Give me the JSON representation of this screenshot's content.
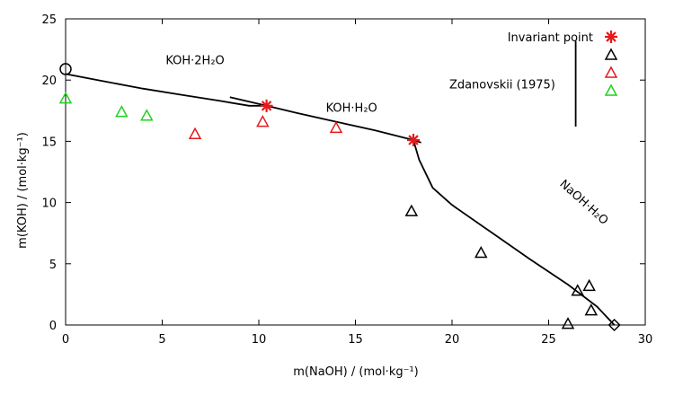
{
  "chart_data": {
    "type": "scatter",
    "xlabel": "m(NaOH) / (mol·kg⁻¹)",
    "ylabel": "m(KOH) / (mol·kg⁻¹)",
    "xlim": [
      0,
      30
    ],
    "ylim": [
      0,
      25
    ],
    "x_ticks": [
      "0",
      "5",
      "10",
      "15",
      "20",
      "25",
      "30"
    ],
    "y_ticks": [
      "0",
      "5",
      "10",
      "15",
      "20",
      "25"
    ],
    "grid": false,
    "legend_position": "top-right",
    "annotations": [
      {
        "text": "KOH·2H₂O",
        "x": 6.7,
        "y": 21.3
      },
      {
        "text": "KOH·H₂O",
        "x": 14.8,
        "y": 17.4
      },
      {
        "text": "Zdanovskii (1975)",
        "x": 22.6,
        "y": 19.3
      },
      {
        "text": "NaOH·H₂O",
        "x": 26.7,
        "y": 9.8
      }
    ],
    "series": [
      {
        "name": "Invariant point",
        "marker": "asterisk",
        "color": "#e41a1c",
        "points": [
          [
            10.4,
            17.9
          ],
          [
            18.0,
            15.1
          ]
        ]
      },
      {
        "name": "",
        "marker": "triangle",
        "color": "#000000",
        "points": [
          [
            17.9,
            9.3
          ],
          [
            21.5,
            5.9
          ],
          [
            26.0,
            0.1
          ],
          [
            26.5,
            2.8
          ],
          [
            27.1,
            3.2
          ],
          [
            27.2,
            1.2
          ]
        ]
      },
      {
        "name": "",
        "marker": "triangle",
        "color": "#e41a1c",
        "points": [
          [
            6.7,
            15.6
          ],
          [
            10.2,
            16.6
          ],
          [
            14.0,
            16.1
          ]
        ]
      },
      {
        "name": "",
        "marker": "triangle",
        "color": "#1fd11f",
        "points": [
          [
            0.0,
            18.5
          ],
          [
            2.9,
            17.4
          ],
          [
            4.2,
            17.1
          ]
        ]
      },
      {
        "name": "",
        "marker": "circle",
        "color": "#000000",
        "points": [
          [
            0.0,
            20.9
          ]
        ]
      },
      {
        "name": "",
        "marker": "diamond",
        "color": "#000000",
        "points": [
          [
            28.4,
            0.0
          ]
        ]
      }
    ],
    "curves": [
      {
        "name": "KOH·2H₂O",
        "points": [
          [
            0.0,
            20.5
          ],
          [
            2.0,
            19.9
          ],
          [
            4.0,
            19.3
          ],
          [
            6.0,
            18.8
          ],
          [
            8.0,
            18.3
          ],
          [
            9.5,
            17.9
          ],
          [
            10.4,
            17.9
          ]
        ]
      },
      {
        "name": "KOH·H₂O",
        "points": [
          [
            8.5,
            18.6
          ],
          [
            10.4,
            17.9
          ],
          [
            12.0,
            17.3
          ],
          [
            14.0,
            16.6
          ],
          [
            16.0,
            15.9
          ],
          [
            18.0,
            15.1
          ],
          [
            18.4,
            14.9
          ]
        ]
      },
      {
        "name": "NaOH·H₂O",
        "points": [
          [
            18.0,
            15.1
          ],
          [
            18.3,
            13.5
          ],
          [
            19.0,
            11.2
          ],
          [
            20.0,
            9.8
          ],
          [
            22.0,
            7.6
          ],
          [
            24.0,
            5.4
          ],
          [
            26.0,
            3.3
          ],
          [
            27.5,
            1.5
          ],
          [
            28.4,
            0.0
          ]
        ]
      },
      {
        "name": "",
        "points": [
          [
            26.4,
            23.2
          ],
          [
            26.4,
            16.2
          ]
        ]
      }
    ]
  }
}
